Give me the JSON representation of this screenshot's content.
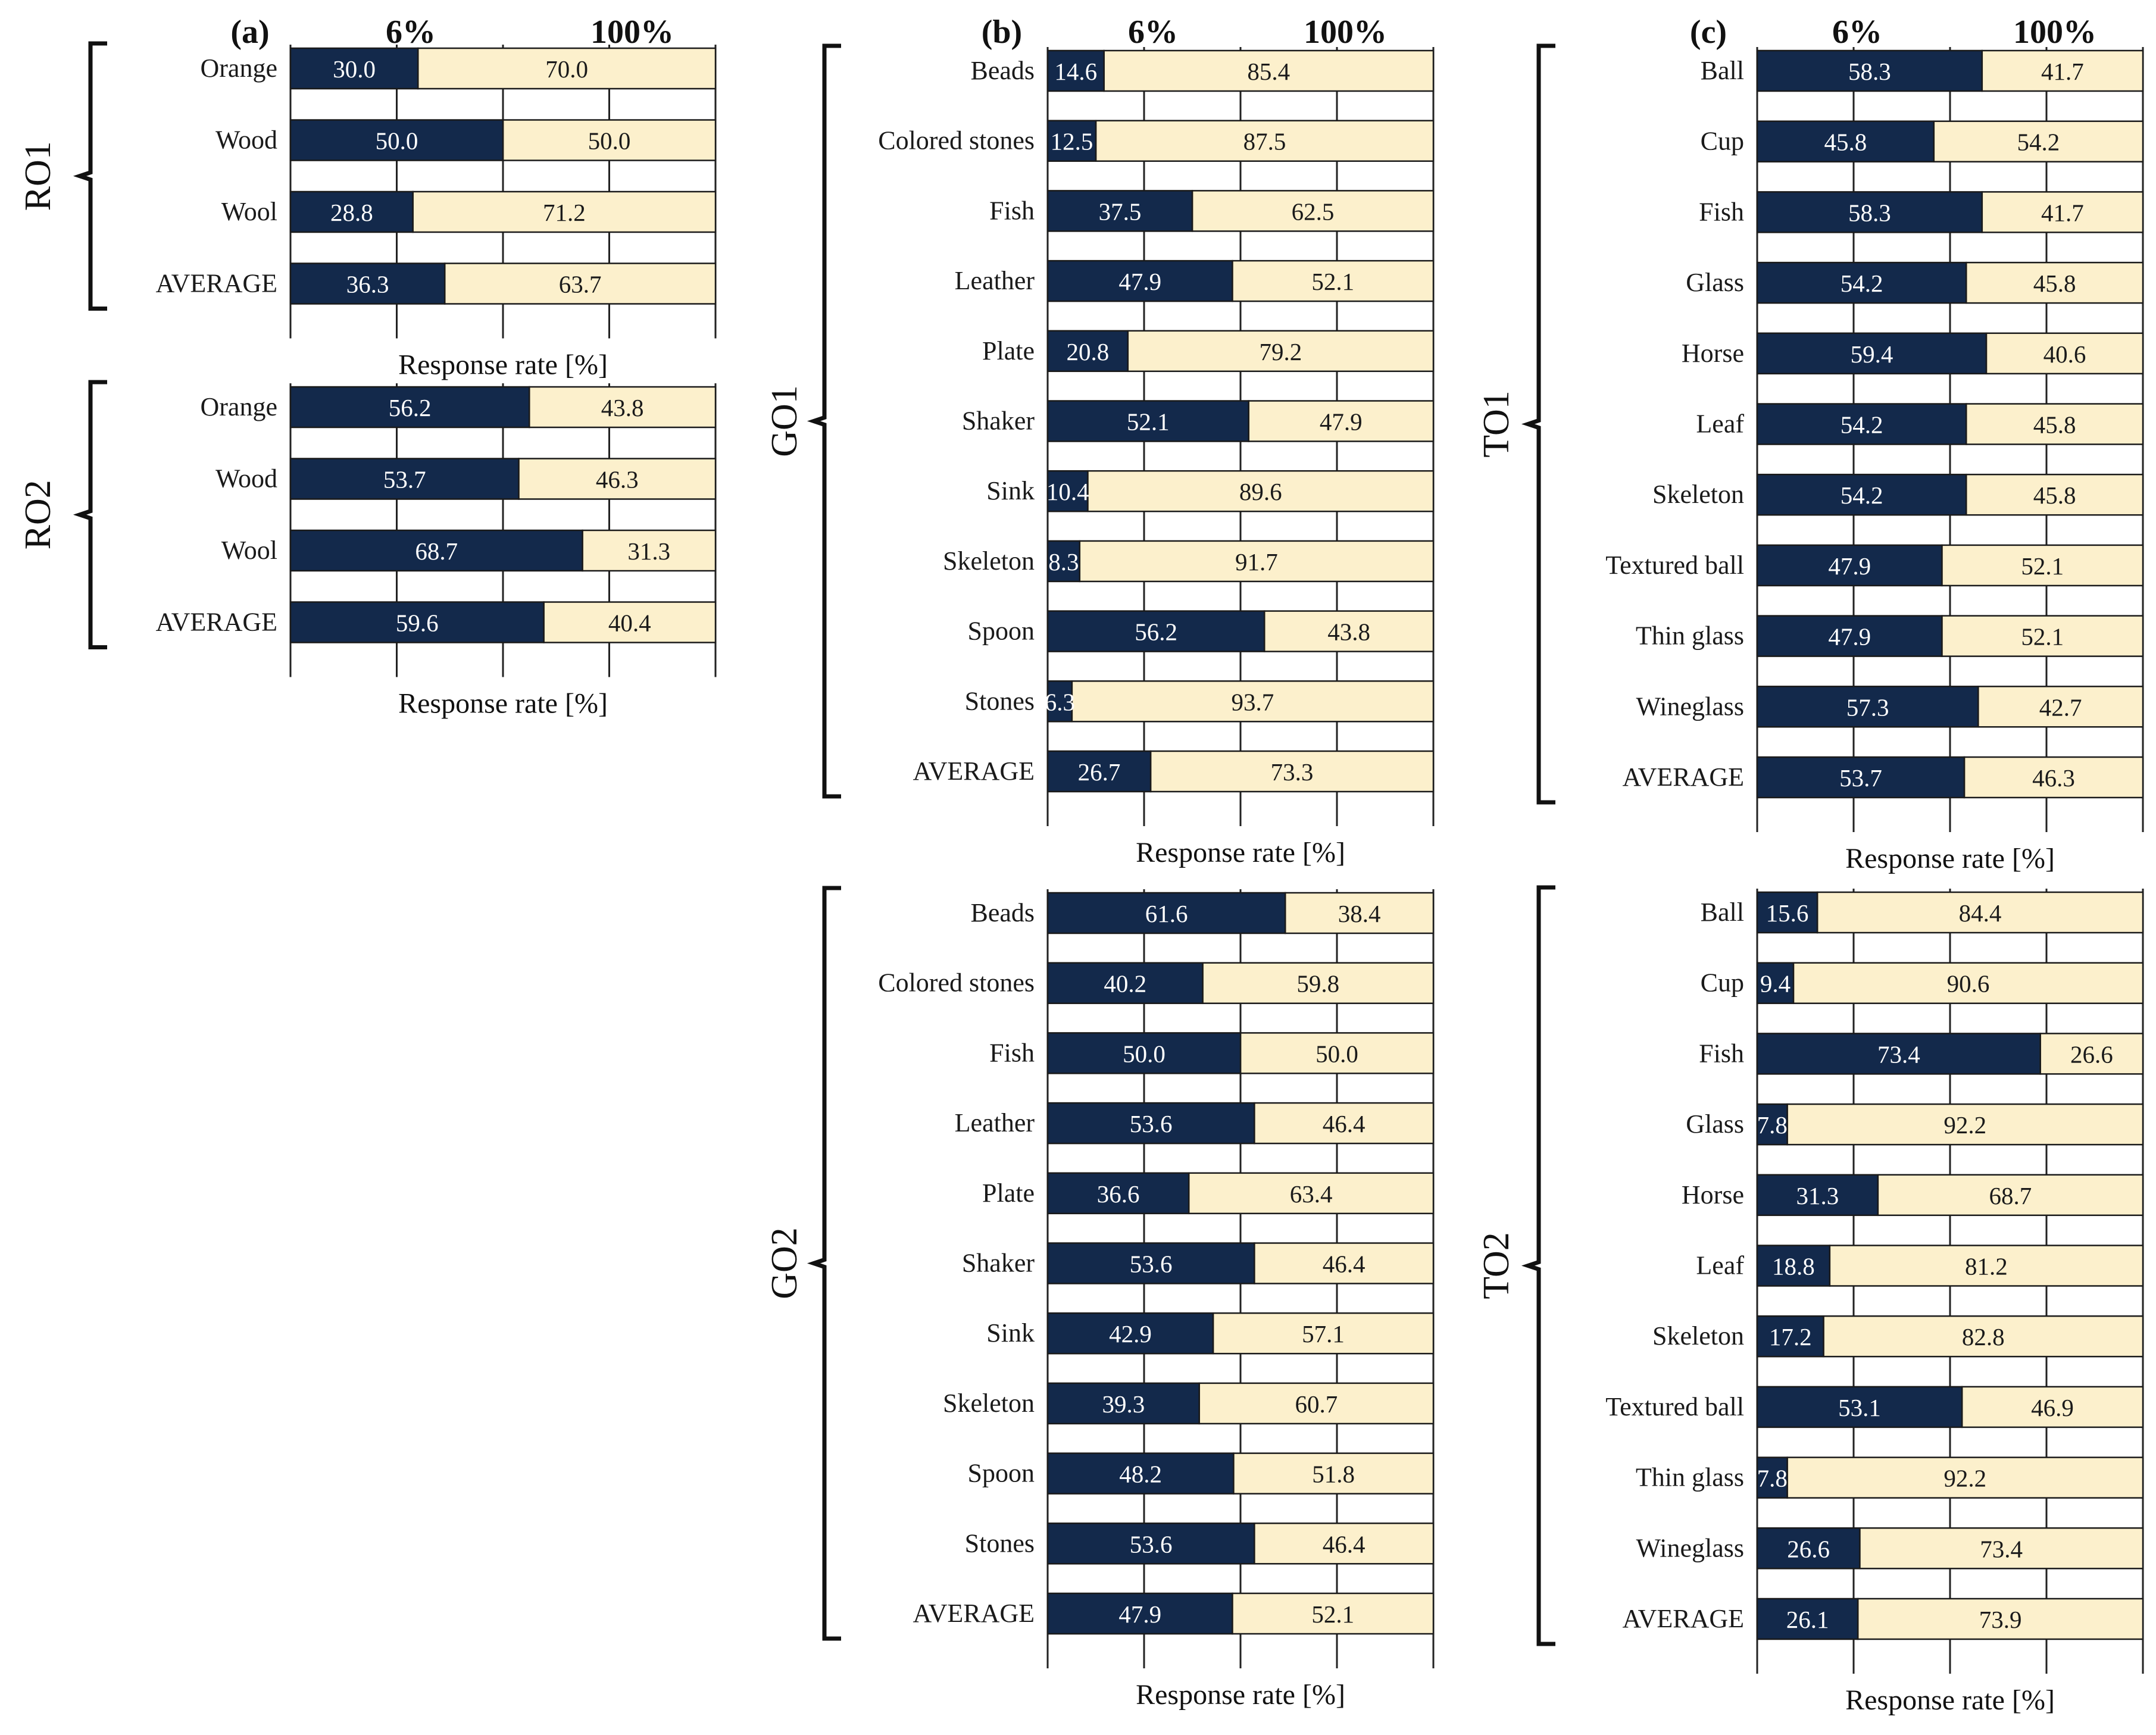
{
  "figure": {
    "panel_labels": [
      "(a)",
      "(b)",
      "(c)"
    ],
    "top_labels": [
      "6%",
      "100%"
    ],
    "colors": {
      "dark": "#13294b",
      "light": "#fcf0cc",
      "grid": "#222222"
    }
  },
  "chart_data": [
    {
      "type": "bar",
      "stacked": true,
      "orientation": "horizontal",
      "group": "RO1",
      "xlabel": "Response rate [%]",
      "xlim": [
        0,
        100
      ],
      "categories": [
        "Orange",
        "Wood",
        "Wool",
        "AVERAGE"
      ],
      "series": [
        {
          "name": "dark",
          "values": [
            30.0,
            50.0,
            28.8,
            36.3
          ],
          "labels": [
            "30.0",
            "50.0",
            "28.8",
            "36.3"
          ]
        },
        {
          "name": "light",
          "values": [
            70.0,
            50.0,
            71.2,
            63.7
          ],
          "labels": [
            "70.0",
            "50.0",
            "71.2",
            "63.7"
          ]
        }
      ]
    },
    {
      "type": "bar",
      "stacked": true,
      "orientation": "horizontal",
      "group": "RO2",
      "xlabel": "Response rate [%]",
      "xlim": [
        0,
        100
      ],
      "categories": [
        "Orange",
        "Wood",
        "Wool",
        "AVERAGE"
      ],
      "series": [
        {
          "name": "dark",
          "values": [
            56.2,
            53.7,
            68.7,
            59.6
          ],
          "labels": [
            "56.2",
            "53.7",
            "68.7",
            "59.6"
          ]
        },
        {
          "name": "light",
          "values": [
            43.8,
            46.3,
            31.3,
            40.4
          ],
          "labels": [
            "43.8",
            "46.3",
            "31.3",
            "40.4"
          ]
        }
      ]
    },
    {
      "type": "bar",
      "stacked": true,
      "orientation": "horizontal",
      "group": "GO1",
      "xlabel": "Response rate [%]",
      "xlim": [
        0,
        100
      ],
      "categories": [
        "Beads",
        "Colored stones",
        "Fish",
        "Leather",
        "Plate",
        "Shaker",
        "Sink",
        "Skeleton",
        "Spoon",
        "Stones",
        "AVERAGE"
      ],
      "series": [
        {
          "name": "dark",
          "values": [
            14.6,
            12.5,
            37.5,
            47.9,
            20.8,
            52.1,
            10.4,
            8.3,
            56.2,
            6.3,
            26.7
          ],
          "labels": [
            "14.6",
            "12.5",
            "37.5",
            "47.9",
            "20.8",
            "52.1",
            "10.4",
            "8.3",
            "56.2",
            "6.3",
            "26.7"
          ]
        },
        {
          "name": "light",
          "values": [
            85.4,
            87.5,
            62.5,
            52.1,
            79.2,
            47.9,
            89.6,
            91.7,
            43.8,
            93.7,
            73.3
          ],
          "labels": [
            "85.4",
            "87.5",
            "62.5",
            "52.1",
            "79.2",
            "47.9",
            "89.6",
            "91.7",
            "43.8",
            "93.7",
            "73.3"
          ]
        }
      ]
    },
    {
      "type": "bar",
      "stacked": true,
      "orientation": "horizontal",
      "group": "GO2",
      "xlabel": "Response rate [%]",
      "xlim": [
        0,
        100
      ],
      "categories": [
        "Beads",
        "Colored stones",
        "Fish",
        "Leather",
        "Plate",
        "Shaker",
        "Sink",
        "Skeleton",
        "Spoon",
        "Stones",
        "AVERAGE"
      ],
      "series": [
        {
          "name": "dark",
          "values": [
            61.6,
            40.2,
            50.0,
            53.6,
            36.6,
            53.6,
            42.9,
            39.3,
            48.2,
            53.6,
            47.9
          ],
          "labels": [
            "61.6",
            "40.2",
            "50.0",
            "53.6",
            "36.6",
            "53.6",
            "42.9",
            "39.3",
            "48.2",
            "53.6",
            "47.9"
          ]
        },
        {
          "name": "light",
          "values": [
            38.4,
            59.8,
            50.0,
            46.4,
            63.4,
            46.4,
            57.1,
            60.7,
            51.8,
            46.4,
            52.1
          ],
          "labels": [
            "38.4",
            "59.8",
            "50.0",
            "46.4",
            "63.4",
            "46.4",
            "57.1",
            "60.7",
            "51.8",
            "46.4",
            "52.1"
          ]
        }
      ]
    },
    {
      "type": "bar",
      "stacked": true,
      "orientation": "horizontal",
      "group": "TO1",
      "xlabel": "Response rate [%]",
      "xlim": [
        0,
        100
      ],
      "categories": [
        "Ball",
        "Cup",
        "Fish",
        "Glass",
        "Horse",
        "Leaf",
        "Skeleton",
        "Textured ball",
        "Thin glass",
        "Wineglass",
        "AVERAGE"
      ],
      "series": [
        {
          "name": "dark",
          "values": [
            58.3,
            45.8,
            58.3,
            54.2,
            59.4,
            54.2,
            54.2,
            47.9,
            47.9,
            57.3,
            53.7
          ],
          "labels": [
            "58.3",
            "45.8",
            "58.3",
            "54.2",
            "59.4",
            "54.2",
            "54.2",
            "47.9",
            "47.9",
            "57.3",
            "53.7"
          ]
        },
        {
          "name": "light",
          "values": [
            41.7,
            54.2,
            41.7,
            45.8,
            40.6,
            45.8,
            45.8,
            52.1,
            52.1,
            42.7,
            46.3
          ],
          "labels": [
            "41.7",
            "54.2",
            "41.7",
            "45.8",
            "40.6",
            "45.8",
            "45.8",
            "52.1",
            "52.1",
            "42.7",
            "46.3"
          ]
        }
      ]
    },
    {
      "type": "bar",
      "stacked": true,
      "orientation": "horizontal",
      "group": "TO2",
      "xlabel": "Response rate [%]",
      "xlim": [
        0,
        100
      ],
      "categories": [
        "Ball",
        "Cup",
        "Fish",
        "Glass",
        "Horse",
        "Leaf",
        "Skeleton",
        "Textured ball",
        "Thin glass",
        "Wineglass",
        "AVERAGE"
      ],
      "series": [
        {
          "name": "dark",
          "values": [
            15.6,
            9.4,
            73.4,
            7.8,
            31.3,
            18.8,
            17.2,
            53.1,
            7.8,
            26.6,
            26.1
          ],
          "labels": [
            "15.6",
            "9.4",
            "73.4",
            "7.8",
            "31.3",
            "18.8",
            "17.2",
            "53.1",
            "7.8",
            "26.6",
            "26.1"
          ]
        },
        {
          "name": "light",
          "values": [
            84.4,
            90.6,
            26.6,
            92.2,
            68.7,
            81.2,
            82.8,
            46.9,
            92.2,
            73.4,
            73.9
          ],
          "labels": [
            "84.4",
            "90.6",
            "26.6",
            "92.2",
            "68.7",
            "81.2",
            "82.8",
            "46.9",
            "92.2",
            "73.4",
            "73.9"
          ]
        }
      ]
    }
  ]
}
